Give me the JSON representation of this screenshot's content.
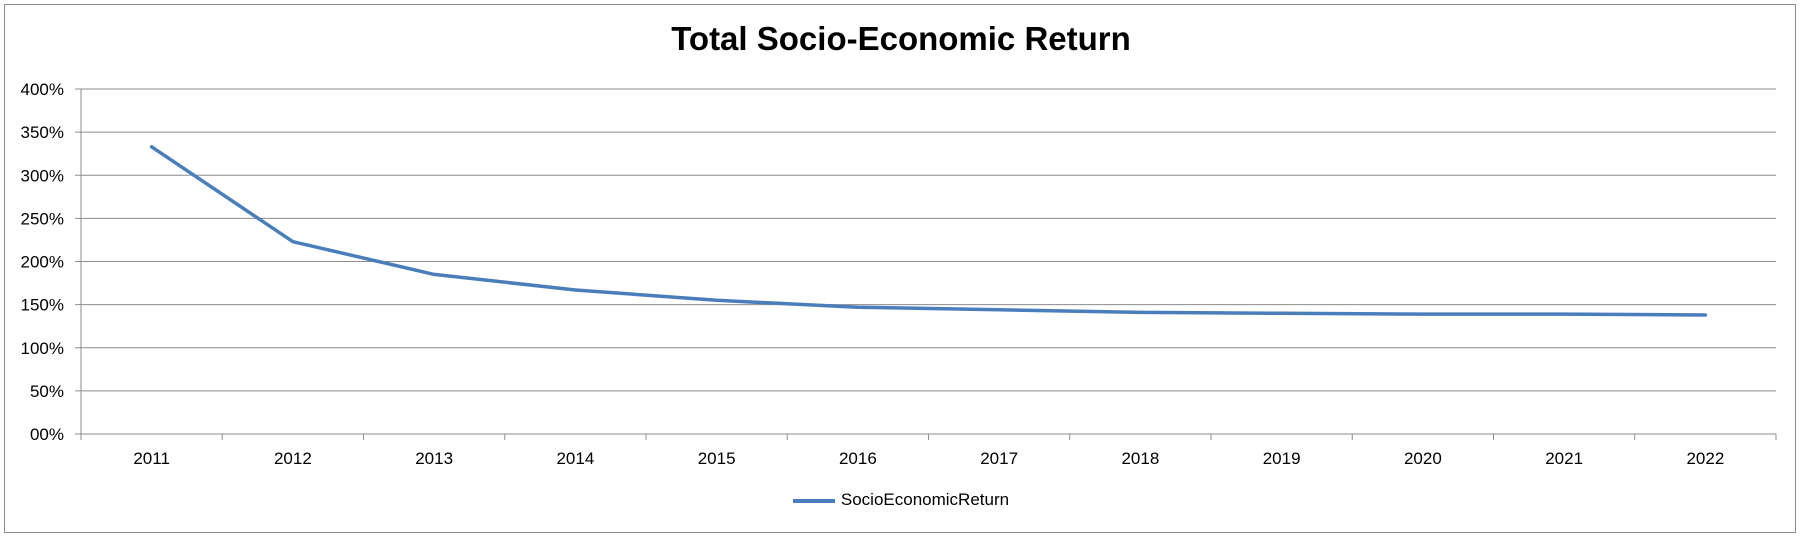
{
  "chart_data": {
    "type": "line",
    "title": "Total Socio-Economic Return",
    "xlabel": "",
    "ylabel": "",
    "categories": [
      "2011",
      "2012",
      "2013",
      "2014",
      "2015",
      "2016",
      "2017",
      "2018",
      "2019",
      "2020",
      "2021",
      "2022"
    ],
    "series": [
      {
        "name": "SocioEconomicReturn",
        "color": "#4a7ebb",
        "values": [
          333,
          223,
          185,
          167,
          155,
          147,
          144,
          141,
          140,
          139,
          139,
          138
        ]
      }
    ],
    "ylim": [
      0,
      400
    ],
    "yticks": [
      0,
      50,
      100,
      150,
      200,
      250,
      300,
      350,
      400
    ],
    "ytick_labels": [
      "00%",
      "50%",
      "100%",
      "150%",
      "200%",
      "250%",
      "300%",
      "350%",
      "400%"
    ],
    "grid": true,
    "legend": "bottom"
  }
}
